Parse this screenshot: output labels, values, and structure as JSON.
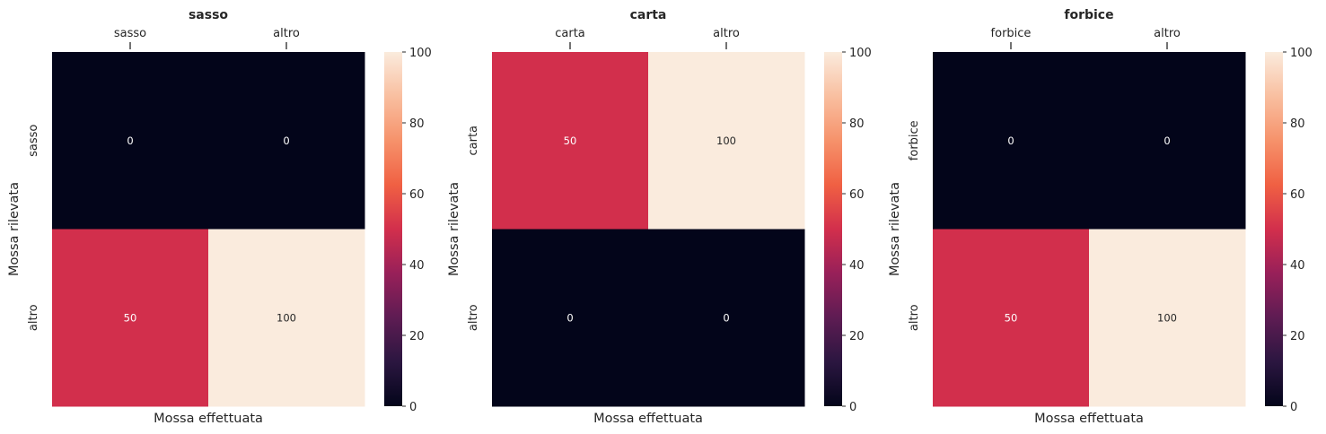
{
  "figure_title": "",
  "chart_data": [
    {
      "type": "heatmap",
      "title": "sasso",
      "xlabel": "Mossa effettuata",
      "ylabel": "Mossa rilevata",
      "x_categories": [
        "sasso",
        "altro"
      ],
      "y_categories": [
        "sasso",
        "altro"
      ],
      "values": [
        [
          0,
          0
        ],
        [
          50,
          100
        ]
      ],
      "colorbar": {
        "min": 0,
        "max": 100,
        "ticks": [
          0,
          20,
          40,
          60,
          80,
          100
        ]
      }
    },
    {
      "type": "heatmap",
      "title": "carta",
      "xlabel": "Mossa effettuata",
      "ylabel": "Mossa rilevata",
      "x_categories": [
        "carta",
        "altro"
      ],
      "y_categories": [
        "carta",
        "altro"
      ],
      "values": [
        [
          50,
          100
        ],
        [
          0,
          0
        ]
      ],
      "colorbar": {
        "min": 0,
        "max": 100,
        "ticks": [
          0,
          20,
          40,
          60,
          80,
          100
        ]
      }
    },
    {
      "type": "heatmap",
      "title": "forbice",
      "xlabel": "Mossa effettuata",
      "ylabel": "Mossa rilevata",
      "x_categories": [
        "forbice",
        "altro"
      ],
      "y_categories": [
        "forbice",
        "altro"
      ],
      "values": [
        [
          0,
          0
        ],
        [
          50,
          100
        ]
      ],
      "colorbar": {
        "min": 0,
        "max": 100,
        "ticks": [
          0,
          20,
          40,
          60,
          80,
          100
        ]
      }
    }
  ],
  "colormap": "rocket",
  "colormap_stops": [
    "#03051a",
    "#2b1640",
    "#5e1c53",
    "#982059",
    "#d22f4c",
    "#f06043",
    "#f6926b",
    "#f9bfa0",
    "#faebdd"
  ]
}
